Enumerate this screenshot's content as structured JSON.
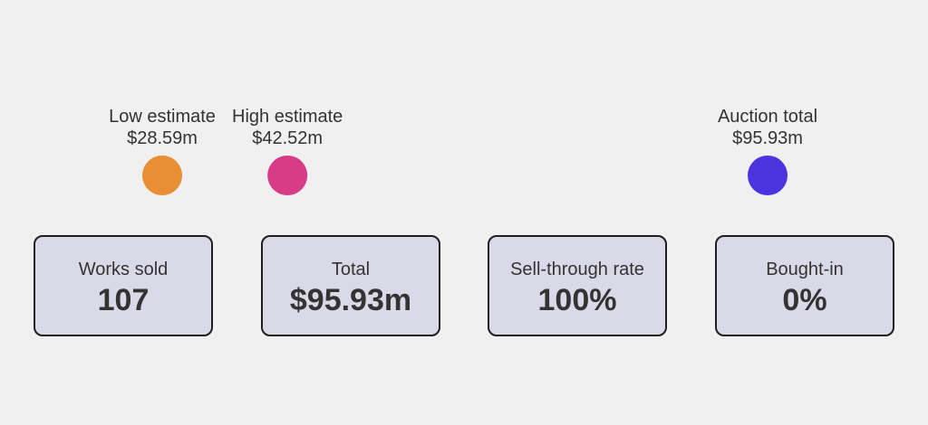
{
  "chart_data": {
    "type": "timeline",
    "unit": "m",
    "currency": "$",
    "xlim": [
      28.59,
      95.93
    ],
    "markers": [
      {
        "label": "Low estimate",
        "value": 28.59,
        "value_label": "$28.59m",
        "color": "#e88e34"
      },
      {
        "label": "High estimate",
        "value": 42.52,
        "value_label": "$42.52m",
        "color": "#d63c87"
      },
      {
        "label": "Auction total",
        "value": 95.93,
        "value_label": "$95.93m",
        "color": "#4b33e0"
      }
    ],
    "gradient": [
      "#e88e34",
      "#d63c87",
      "#4b33e0"
    ]
  },
  "stats": [
    {
      "label": "Works sold",
      "value": "107"
    },
    {
      "label": "Total",
      "value": "$95.93m"
    },
    {
      "label": "Sell-through rate",
      "value": "100%"
    },
    {
      "label": "Bought-in",
      "value": "0%"
    }
  ]
}
